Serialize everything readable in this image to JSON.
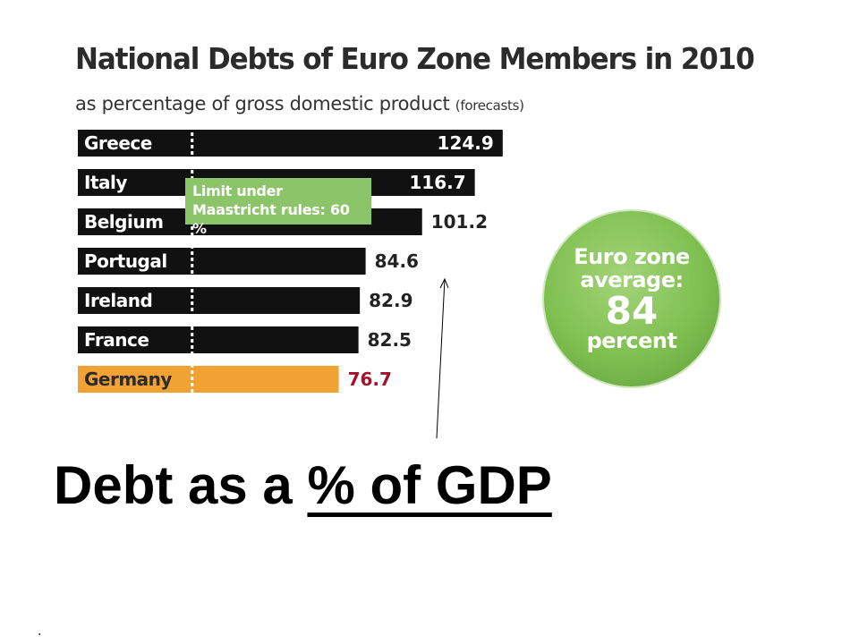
{
  "caption": {
    "prefix": "Debt as a ",
    "underlined": "% of GDP"
  },
  "footer_dot": ".",
  "chart_data": {
    "type": "bar",
    "orientation": "horizontal",
    "title": "National Debts of Euro Zone Members in 2010",
    "subtitle": "as percentage of gross domestic product",
    "subtitle_note": "(forecasts)",
    "categories": [
      "Greece",
      "Italy",
      "Belgium",
      "Portugal",
      "Ireland",
      "France",
      "Germany"
    ],
    "values": [
      124.9,
      116.7,
      101.2,
      84.6,
      82.9,
      82.5,
      76.7
    ],
    "value_labels": [
      "124.9",
      "116.7",
      "101.2",
      "84.6",
      "82.9",
      "82.5",
      "76.7"
    ],
    "highlight_category": "Germany",
    "reference_line": {
      "value": 60,
      "label_line1": "Limit under",
      "label_line2": "Maastricht rules: 60 %"
    },
    "average_badge": {
      "line1": "Euro zone",
      "line2": "average:",
      "value": "84",
      "line4": "percent"
    },
    "xlim": [
      0,
      126
    ],
    "colors": {
      "bar": "#111111",
      "highlight_bar": "#f0a235",
      "highlight_value": "#a3122a",
      "value_text": "#222222",
      "badge": "#7fbf50",
      "limit_box": "#8cc46a"
    }
  }
}
